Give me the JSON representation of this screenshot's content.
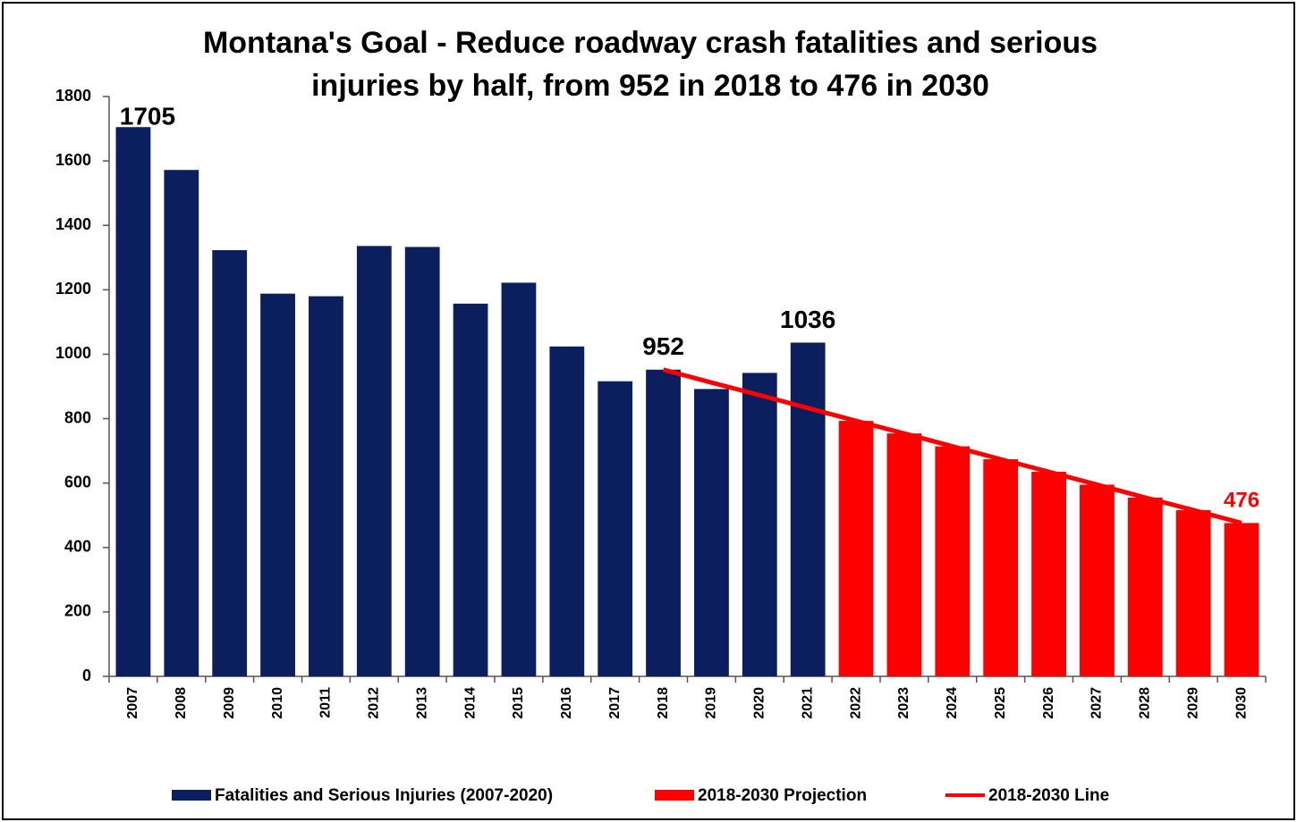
{
  "chart_data": {
    "type": "bar",
    "title": [
      "Montana's Goal - Reduce roadway crash fatalities and serious",
      "injuries by half, from 952 in 2018 to 476 in 2030"
    ],
    "categories": [
      "2007",
      "2008",
      "2009",
      "2010",
      "2011",
      "2012",
      "2013",
      "2014",
      "2015",
      "2016",
      "2017",
      "2018",
      "2019",
      "2020",
      "2021",
      "2022",
      "2023",
      "2024",
      "2025",
      "2026",
      "2027",
      "2028",
      "2029",
      "2030"
    ],
    "series": [
      {
        "name": "Fatalities and Serious Injuries (2007-2020)",
        "type": "bar",
        "color": "#0b1f5e",
        "values": [
          1705,
          1572,
          1323,
          1188,
          1180,
          1336,
          1333,
          1157,
          1222,
          1024,
          916,
          952,
          892,
          942,
          1036,
          null,
          null,
          null,
          null,
          null,
          null,
          null,
          null,
          null
        ],
        "value_labels": [
          "1705",
          null,
          null,
          null,
          null,
          null,
          null,
          null,
          null,
          null,
          null,
          "952",
          null,
          null,
          "1036",
          null,
          null,
          null,
          null,
          null,
          null,
          null,
          null,
          null
        ],
        "label_color": "#000000"
      },
      {
        "name": "2018-2030 Projection",
        "type": "bar",
        "color": "#ff0000",
        "values": [
          null,
          null,
          null,
          null,
          null,
          null,
          null,
          null,
          null,
          null,
          null,
          null,
          null,
          null,
          null,
          793,
          754,
          714,
          674,
          635,
          595,
          555,
          516,
          476
        ],
        "value_labels": [
          null,
          null,
          null,
          null,
          null,
          null,
          null,
          null,
          null,
          null,
          null,
          null,
          null,
          null,
          null,
          null,
          null,
          null,
          null,
          null,
          null,
          null,
          null,
          "476"
        ],
        "label_color": "#ff0000"
      },
      {
        "name": "2018-2030 Line",
        "type": "line",
        "color": "#ff0000",
        "values": [
          null,
          null,
          null,
          null,
          null,
          null,
          null,
          null,
          null,
          null,
          null,
          952,
          912,
          873,
          833,
          793,
          754,
          714,
          674,
          635,
          595,
          555,
          516,
          476
        ]
      }
    ],
    "ylim": [
      0,
      1800
    ],
    "yticks": [
      0,
      200,
      400,
      600,
      800,
      1000,
      1200,
      1400,
      1600,
      1800
    ],
    "grid": false,
    "legend": "bottom"
  }
}
